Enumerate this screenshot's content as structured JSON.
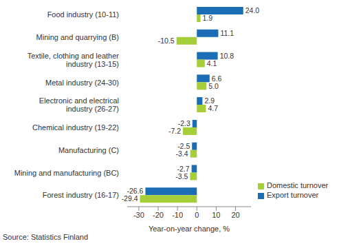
{
  "chart_data": {
    "type": "bar",
    "orientation": "horizontal",
    "categories": [
      "Food industry (10-11)",
      "Mining and quarrying (B)",
      "Textile, clothing and leather industry (13-15)",
      "Metal industry (24-30)",
      "Electronic and electrical industry (26-27)",
      "Chemical industry (19-22)",
      "Manufacturing (C)",
      "Mining and manufacturing (BC)",
      "Forest industry (16-17)"
    ],
    "series": [
      {
        "name": "Export turnover",
        "color": "#1b6db5",
        "values": [
          24.0,
          11.1,
          10.8,
          6.6,
          2.9,
          -2.3,
          -2.5,
          -2.7,
          -26.6
        ],
        "value_labels": [
          "24.0",
          "11.1",
          "10.8",
          "6.6",
          "2.9",
          "-2.3",
          "-2.5",
          "-2.7",
          "-26.6"
        ]
      },
      {
        "name": "Domestic turnover",
        "color": "#a6ce39",
        "values": [
          1.9,
          -10.5,
          4.1,
          5.0,
          4.7,
          -7.2,
          -3.4,
          -3.5,
          -29.4
        ],
        "value_labels": [
          "1.9",
          "-10.5",
          "4.1",
          "5.0",
          "4.7",
          "-7.2",
          "-3.4",
          "-3.5",
          "-29.4"
        ]
      }
    ],
    "x_label": "Year-on-year change, %",
    "xlim": [
      -36,
      28
    ],
    "xticks": [
      -30,
      -20,
      -10,
      0,
      10,
      20
    ],
    "grid": false,
    "legend": "lower right",
    "data_labels": true,
    "source": "Source: Statistics Finland"
  }
}
